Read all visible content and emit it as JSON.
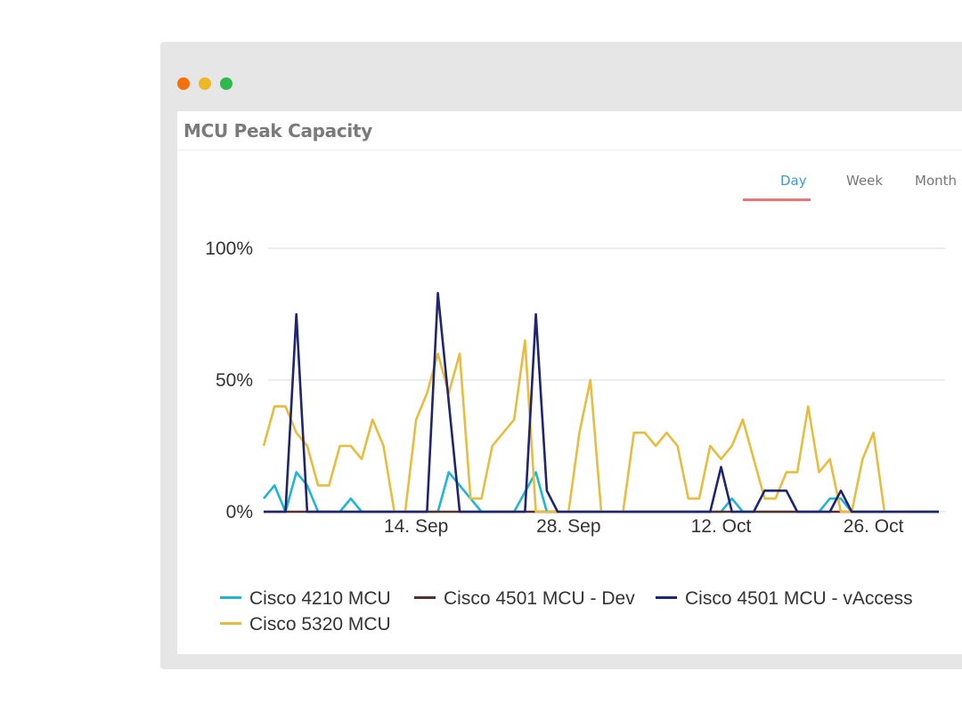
{
  "window": {
    "controls": [
      {
        "name": "close",
        "color": "#f4700d"
      },
      {
        "name": "minimize",
        "color": "#ecb825"
      },
      {
        "name": "maximize",
        "color": "#2fb84d"
      }
    ]
  },
  "panel": {
    "title": "MCU Peak Capacity",
    "tabs": [
      {
        "label": "Day",
        "active": true
      },
      {
        "label": "Week",
        "active": false
      },
      {
        "label": "Month",
        "active": false
      }
    ],
    "accent_color": "#3a9bd5",
    "underline_color": "#f17474"
  },
  "chart_data": {
    "type": "line",
    "title": "",
    "xlabel": "",
    "ylabel": "",
    "x_type": "date",
    "x_start": "2015-08-31",
    "x_end": "2015-11-01",
    "x_ticks": [
      {
        "label": "14. Sep",
        "date": "2015-09-14"
      },
      {
        "label": "28. Sep",
        "date": "2015-09-28"
      },
      {
        "label": "12. Oct",
        "date": "2015-10-12"
      },
      {
        "label": "26. Oct",
        "date": "2015-10-26"
      }
    ],
    "y_ticks": [
      {
        "label": "0%",
        "value": 0
      },
      {
        "label": "50%",
        "value": 50
      },
      {
        "label": "100%",
        "value": 100
      }
    ],
    "ylim": [
      0,
      100
    ],
    "grid": true,
    "legend_position": "bottom",
    "series": [
      {
        "name": "Cisco 4210 MCU",
        "color": "#1fb5d4",
        "points": [
          [
            "2015-08-31",
            5
          ],
          [
            "2015-09-01",
            10
          ],
          [
            "2015-09-02",
            0
          ],
          [
            "2015-09-03",
            15
          ],
          [
            "2015-09-04",
            10
          ],
          [
            "2015-09-05",
            0
          ],
          [
            "2015-09-07",
            0
          ],
          [
            "2015-09-08",
            5
          ],
          [
            "2015-09-09",
            0
          ],
          [
            "2015-09-16",
            0
          ],
          [
            "2015-09-17",
            15
          ],
          [
            "2015-09-19",
            5
          ],
          [
            "2015-09-20",
            0
          ],
          [
            "2015-09-23",
            0
          ],
          [
            "2015-09-25",
            15
          ],
          [
            "2015-09-26",
            0
          ],
          [
            "2015-10-12",
            0
          ],
          [
            "2015-10-13",
            5
          ],
          [
            "2015-10-14",
            0
          ],
          [
            "2015-10-21",
            0
          ],
          [
            "2015-10-22",
            5
          ],
          [
            "2015-10-23",
            5
          ],
          [
            "2015-10-24",
            0
          ],
          [
            "2015-11-01",
            0
          ]
        ]
      },
      {
        "name": "Cisco 4501 MCU - Dev",
        "color": "#5b2e2e",
        "points": [
          [
            "2015-08-31",
            0
          ],
          [
            "2015-11-01",
            0
          ]
        ]
      },
      {
        "name": "Cisco 4501 MCU - vAccess",
        "color": "#1f2570",
        "points": [
          [
            "2015-08-31",
            0
          ],
          [
            "2015-09-02",
            0
          ],
          [
            "2015-09-03",
            75
          ],
          [
            "2015-09-04",
            0
          ],
          [
            "2015-09-15",
            0
          ],
          [
            "2015-09-16",
            83
          ],
          [
            "2015-09-18",
            0
          ],
          [
            "2015-09-24",
            0
          ],
          [
            "2015-09-25",
            75
          ],
          [
            "2015-09-26",
            8
          ],
          [
            "2015-09-27",
            0
          ],
          [
            "2015-10-11",
            0
          ],
          [
            "2015-10-12",
            17
          ],
          [
            "2015-10-13",
            0
          ],
          [
            "2015-10-15",
            0
          ],
          [
            "2015-10-16",
            8
          ],
          [
            "2015-10-18",
            8
          ],
          [
            "2015-10-19",
            0
          ],
          [
            "2015-10-22",
            0
          ],
          [
            "2015-10-23",
            8
          ],
          [
            "2015-10-24",
            0
          ],
          [
            "2015-11-01",
            0
          ]
        ]
      },
      {
        "name": "Cisco 5320 MCU",
        "color": "#e8bc3e",
        "points": [
          [
            "2015-08-31",
            25
          ],
          [
            "2015-09-01",
            40
          ],
          [
            "2015-09-02",
            40
          ],
          [
            "2015-09-03",
            30
          ],
          [
            "2015-09-04",
            25
          ],
          [
            "2015-09-05",
            10
          ],
          [
            "2015-09-06",
            10
          ],
          [
            "2015-09-07",
            25
          ],
          [
            "2015-09-08",
            25
          ],
          [
            "2015-09-09",
            20
          ],
          [
            "2015-09-10",
            35
          ],
          [
            "2015-09-11",
            25
          ],
          [
            "2015-09-12",
            0
          ],
          [
            "2015-09-13",
            0
          ],
          [
            "2015-09-14",
            35
          ],
          [
            "2015-09-15",
            45
          ],
          [
            "2015-09-16",
            60
          ],
          [
            "2015-09-17",
            45
          ],
          [
            "2015-09-18",
            60
          ],
          [
            "2015-09-19",
            5
          ],
          [
            "2015-09-20",
            5
          ],
          [
            "2015-09-21",
            25
          ],
          [
            "2015-09-22",
            30
          ],
          [
            "2015-09-23",
            35
          ],
          [
            "2015-09-24",
            65
          ],
          [
            "2015-09-25",
            0
          ],
          [
            "2015-09-28",
            0
          ],
          [
            "2015-09-29",
            30
          ],
          [
            "2015-09-30",
            50
          ],
          [
            "2015-10-01",
            0
          ],
          [
            "2015-10-03",
            0
          ],
          [
            "2015-10-04",
            30
          ],
          [
            "2015-10-05",
            30
          ],
          [
            "2015-10-06",
            25
          ],
          [
            "2015-10-07",
            30
          ],
          [
            "2015-10-08",
            25
          ],
          [
            "2015-10-09",
            5
          ],
          [
            "2015-10-10",
            5
          ],
          [
            "2015-10-11",
            25
          ],
          [
            "2015-10-12",
            20
          ],
          [
            "2015-10-13",
            25
          ],
          [
            "2015-10-14",
            35
          ],
          [
            "2015-10-15",
            20
          ],
          [
            "2015-10-16",
            5
          ],
          [
            "2015-10-17",
            5
          ],
          [
            "2015-10-18",
            15
          ],
          [
            "2015-10-19",
            15
          ],
          [
            "2015-10-20",
            40
          ],
          [
            "2015-10-21",
            15
          ],
          [
            "2015-10-22",
            20
          ],
          [
            "2015-10-23",
            0
          ],
          [
            "2015-10-24",
            0
          ],
          [
            "2015-10-25",
            20
          ],
          [
            "2015-10-26",
            30
          ],
          [
            "2015-10-27",
            0
          ],
          [
            "2015-10-29",
            0
          ]
        ]
      }
    ]
  }
}
